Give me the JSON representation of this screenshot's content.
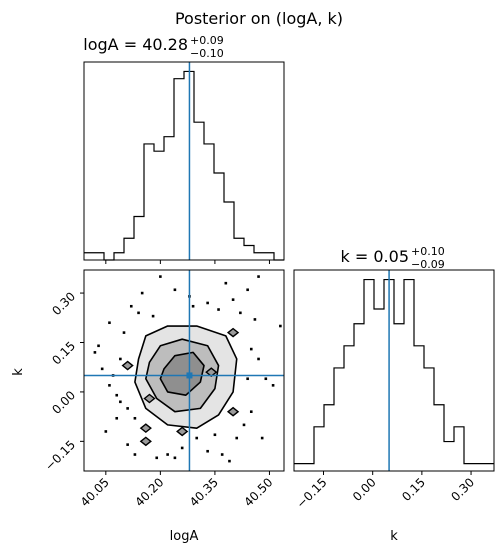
{
  "chart_data": {
    "type": "corner",
    "title": "Posterior on (logA, k)",
    "marker_color": "#1f77b4",
    "panels": [
      {
        "type": "histogram",
        "title": "logA = 40.28",
        "param": "logA",
        "median": 40.28,
        "err_plus": "+0.09",
        "err_minus": "−0.10",
        "xlim": [
          39.99,
          40.54
        ],
        "bin_edges": [
          39.99,
          40.0175,
          40.045,
          40.0725,
          40.1,
          40.1275,
          40.155,
          40.1825,
          40.21,
          40.2375,
          40.265,
          40.2925,
          40.32,
          40.3475,
          40.375,
          40.4025,
          40.43,
          40.4575,
          40.485,
          40.5125,
          40.54
        ],
        "counts": [
          1,
          1,
          0,
          1,
          3,
          6,
          16,
          15,
          17,
          25,
          26,
          19,
          16,
          12,
          8,
          3,
          2,
          1,
          1,
          0
        ]
      },
      {
        "type": "histogram",
        "title": "k = 0.05",
        "param": "k",
        "median": 0.05,
        "err_plus": "+0.10",
        "err_minus": "−0.09",
        "xlim": [
          -0.24,
          0.37
        ],
        "bin_edges": [
          -0.24,
          -0.2095,
          -0.179,
          -0.1485,
          -0.118,
          -0.0875,
          -0.057,
          -0.0265,
          0.004,
          0.0345,
          0.065,
          0.0955,
          0.126,
          0.1565,
          0.187,
          0.2175,
          0.248,
          0.2785,
          0.309,
          0.3395,
          0.37
        ],
        "counts": [
          1,
          1,
          6,
          9,
          14,
          17,
          20,
          26,
          22,
          26,
          20,
          26,
          17,
          14,
          9,
          4,
          6,
          1,
          1,
          1
        ]
      },
      {
        "type": "2d-contour",
        "x_param": "logA",
        "y_param": "k",
        "xlabel": "logA",
        "ylabel": "k",
        "xlim": [
          39.99,
          40.54
        ],
        "ylim": [
          -0.24,
          0.37
        ],
        "xticks": [
          "40.05",
          "40.20",
          "40.35",
          "40.50"
        ],
        "xtick_values": [
          40.05,
          40.2,
          40.35,
          40.5
        ],
        "yticks": [
          "0.30",
          "0.15",
          "0.00",
          "−0.15"
        ],
        "ytick_values": [
          0.3,
          0.15,
          0.0,
          -0.15
        ],
        "truth": [
          40.28,
          0.05
        ],
        "contour_levels": [
          [
            [
              40.14,
              0.1
            ],
            [
              40.16,
              0.17
            ],
            [
              40.22,
              0.2
            ],
            [
              40.3,
              0.2
            ],
            [
              40.38,
              0.17
            ],
            [
              40.41,
              0.1
            ],
            [
              40.4,
              0.0
            ],
            [
              40.36,
              -0.07
            ],
            [
              40.3,
              -0.11
            ],
            [
              40.22,
              -0.1
            ],
            [
              40.16,
              -0.05
            ],
            [
              40.13,
              0.03
            ]
          ],
          [
            [
              40.17,
              0.09
            ],
            [
              40.2,
              0.14
            ],
            [
              40.26,
              0.16
            ],
            [
              40.33,
              0.14
            ],
            [
              40.36,
              0.08
            ],
            [
              40.35,
              0.01
            ],
            [
              40.31,
              -0.05
            ],
            [
              40.24,
              -0.06
            ],
            [
              40.19,
              -0.02
            ],
            [
              40.16,
              0.04
            ]
          ],
          [
            [
              40.21,
              0.07
            ],
            [
              40.24,
              0.11
            ],
            [
              40.29,
              0.12
            ],
            [
              40.32,
              0.08
            ],
            [
              40.31,
              0.03
            ],
            [
              40.27,
              -0.01
            ],
            [
              40.22,
              0.0
            ],
            [
              40.2,
              0.04
            ]
          ]
        ],
        "islands": [
          [
            40.11,
            0.08
          ],
          [
            40.17,
            -0.02
          ],
          [
            40.16,
            -0.11
          ],
          [
            40.16,
            -0.15
          ],
          [
            40.34,
            0.06
          ],
          [
            40.4,
            0.18
          ],
          [
            40.4,
            -0.06
          ],
          [
            40.26,
            -0.12
          ]
        ],
        "scatter": [
          [
            40.03,
            0.14
          ],
          [
            40.06,
            0.21
          ],
          [
            40.07,
            0.05
          ],
          [
            40.09,
            -0.03
          ],
          [
            40.1,
            0.18
          ],
          [
            40.12,
            0.26
          ],
          [
            40.13,
            -0.08
          ],
          [
            40.15,
            0.3
          ],
          [
            40.08,
            -0.08
          ],
          [
            40.05,
            -0.12
          ],
          [
            40.11,
            -0.16
          ],
          [
            40.13,
            -0.19
          ],
          [
            40.14,
            0.24
          ],
          [
            40.18,
            0.23
          ],
          [
            40.19,
            -0.2
          ],
          [
            40.22,
            -0.19
          ],
          [
            40.24,
            -0.2
          ],
          [
            40.26,
            -0.17
          ],
          [
            40.3,
            -0.14
          ],
          [
            40.33,
            -0.18
          ],
          [
            40.35,
            -0.13
          ],
          [
            40.37,
            -0.19
          ],
          [
            40.39,
            -0.21
          ],
          [
            40.41,
            -0.14
          ],
          [
            40.43,
            -0.1
          ],
          [
            40.44,
            0.04
          ],
          [
            40.45,
            0.13
          ],
          [
            40.42,
            0.24
          ],
          [
            40.44,
            0.31
          ],
          [
            40.46,
            0.22
          ],
          [
            40.49,
            0.04
          ],
          [
            40.53,
            0.2
          ],
          [
            40.51,
            0.02
          ],
          [
            40.4,
            0.28
          ],
          [
            40.36,
            0.25
          ],
          [
            40.33,
            0.27
          ],
          [
            40.29,
            0.26
          ],
          [
            40.28,
            0.29
          ],
          [
            40.24,
            0.31
          ],
          [
            40.2,
            0.35
          ],
          [
            40.47,
            0.35
          ],
          [
            40.45,
            -0.06
          ],
          [
            40.48,
            -0.14
          ],
          [
            40.06,
            0.02
          ],
          [
            40.04,
            0.07
          ],
          [
            40.09,
            0.1
          ],
          [
            40.11,
            -0.05
          ],
          [
            40.08,
            -0.01
          ],
          [
            40.47,
            0.1
          ],
          [
            40.38,
            0.33
          ],
          [
            40.02,
            0.12
          ]
        ]
      }
    ]
  }
}
